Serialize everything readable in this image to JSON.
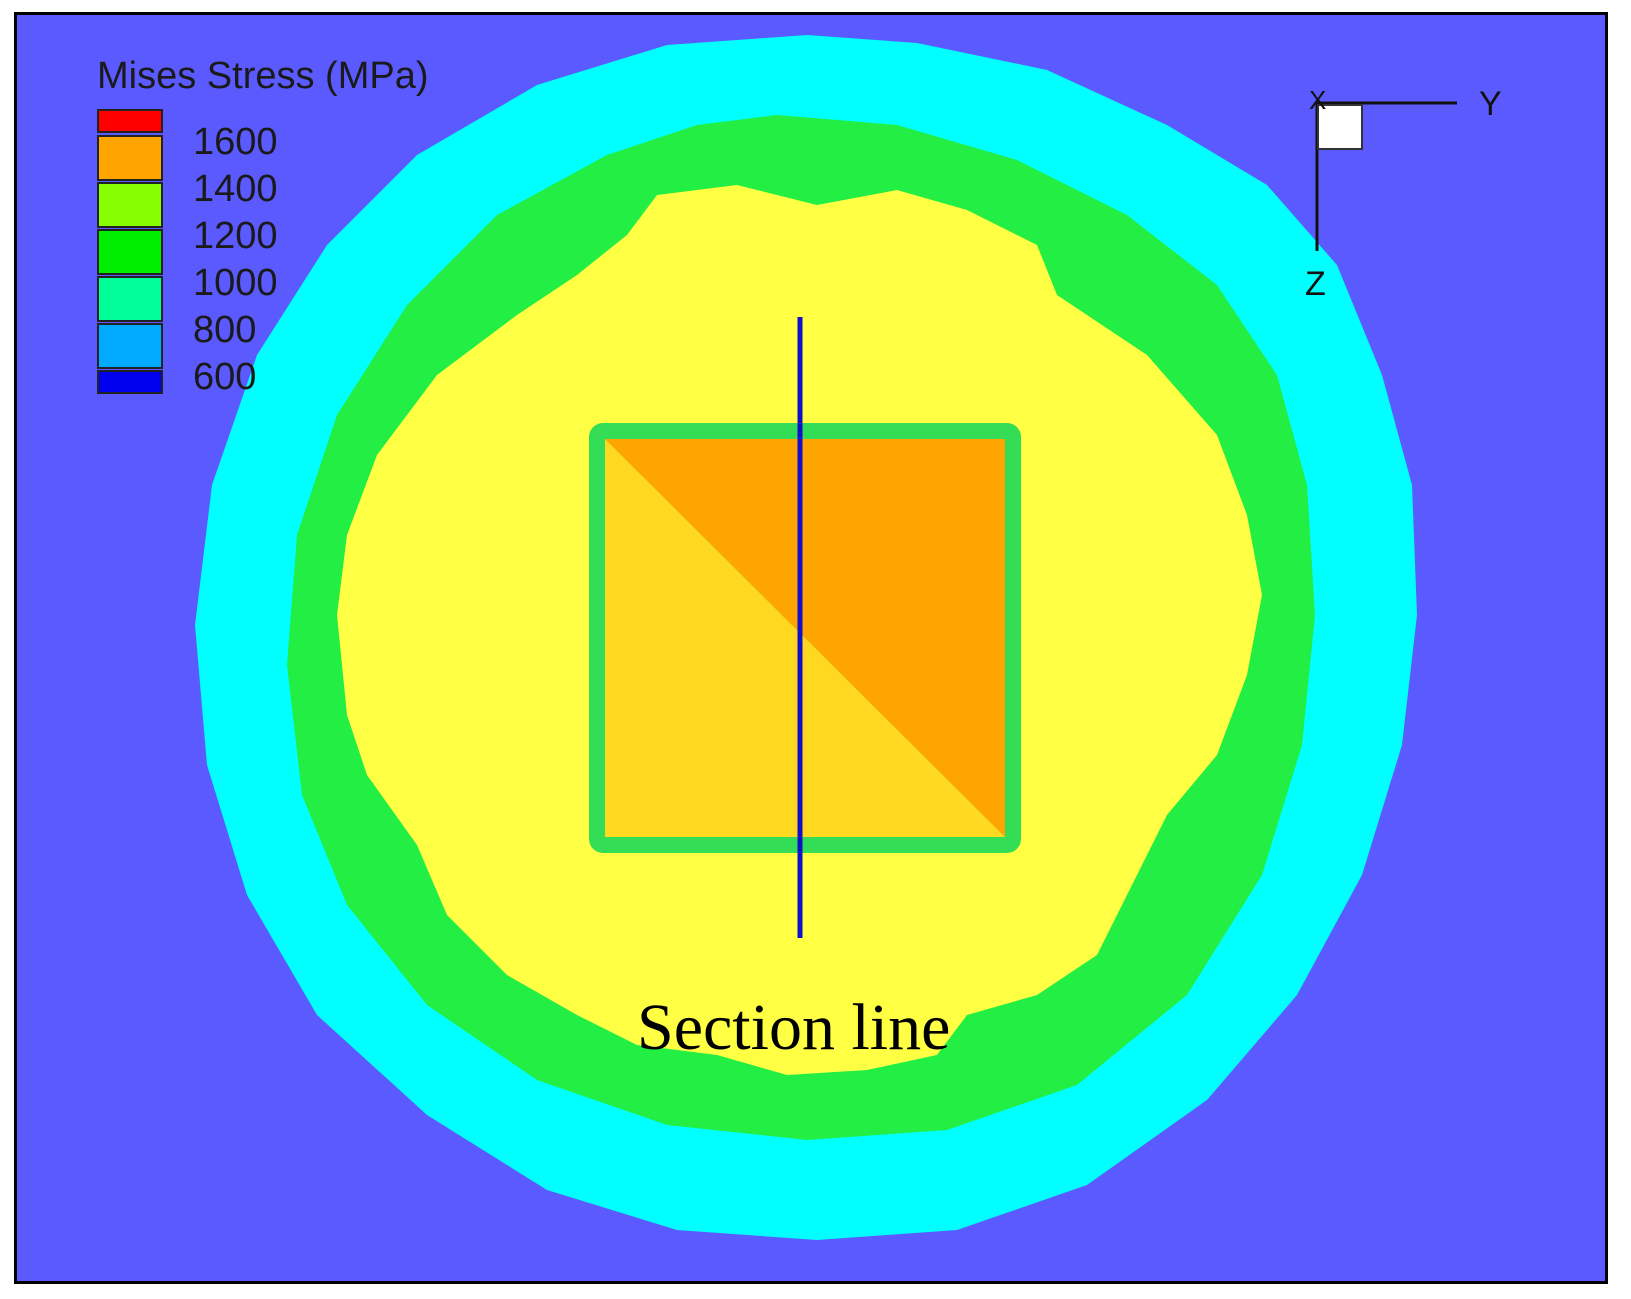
{
  "legend": {
    "title": "Mises Stress (MPa)",
    "swatch_colors": [
      "#ff0000",
      "#ffa500",
      "#88ff00",
      "#00ee00",
      "#00ff99",
      "#00aaff",
      "#0000ee"
    ],
    "labels": [
      "1600",
      "1400",
      "1200",
      "1000",
      "800",
      "600"
    ]
  },
  "axes": {
    "y_label": "Y",
    "z_label": "Z",
    "x_label": "X"
  },
  "annotation": {
    "section_line_label": "Section line"
  },
  "colors": {
    "background": "#5a5aff",
    "outer_band": "#00ffff",
    "ring": "#22ee44",
    "plateau": "#ffff44",
    "core_high": "#ffa500",
    "core_low": "#ffd820",
    "core_edge": "#33dd55",
    "section_line": "#1010cc"
  }
}
